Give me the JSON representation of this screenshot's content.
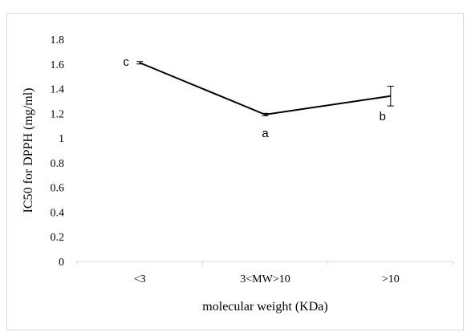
{
  "chart_data": {
    "type": "line",
    "title": "",
    "xlabel": "molecular weight (KDa)",
    "ylabel": "IC50 for DPPH (mg/ml)",
    "categories": [
      "<3",
      "3<MW>10",
      ">10"
    ],
    "series": [
      {
        "values": [
          1.61,
          1.19,
          1.34
        ],
        "error": [
          0.01,
          0.01,
          0.08
        ],
        "annotations": [
          "c",
          "a",
          "b"
        ],
        "color": "#000000"
      }
    ],
    "ylim": [
      0,
      1.8
    ],
    "yticks": [
      "0",
      "0.2",
      "0.4",
      "0.6",
      "0.8",
      "1",
      "1.2",
      "1.4",
      "1.6",
      "1.8"
    ],
    "grid": false,
    "legend": "none"
  }
}
